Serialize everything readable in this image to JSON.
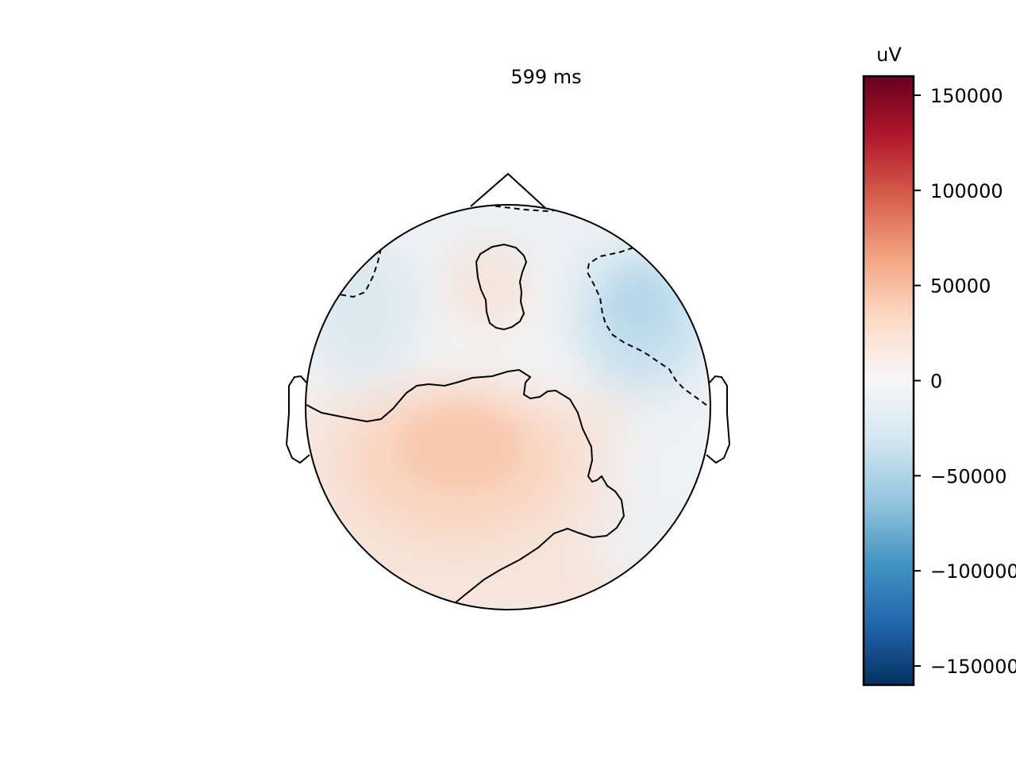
{
  "chart_data": {
    "type": "heatmap",
    "title": "599 ms",
    "colorbar": {
      "label": "uV",
      "min": -160000,
      "max": 160000,
      "colormap": "RdBu_r",
      "colormap_stops": [
        "#053061",
        "#2166ac",
        "#4393c3",
        "#92c5de",
        "#d1e5f0",
        "#f7f7f7",
        "#fddbc7",
        "#f4a582",
        "#d6604d",
        "#b2182b",
        "#67001f"
      ],
      "ticks": [
        150000,
        100000,
        50000,
        0,
        -50000,
        -100000,
        -150000
      ],
      "tick_labels": [
        "150000",
        "100000",
        "50000",
        "0",
        "−50000",
        "−100000",
        "−150000"
      ]
    },
    "regions": [
      {
        "area": "frontal pole",
        "approx_value": 0,
        "color": "#f0f3f5"
      },
      {
        "area": "right frontal",
        "approx_value": -40000,
        "color": "#b9d9ea"
      },
      {
        "area": "left frontal",
        "approx_value": -12000,
        "color": "#dfeaf2"
      },
      {
        "area": "midline frontal island",
        "approx_value": 20000,
        "color": "#f8e2d6"
      },
      {
        "area": "left-central",
        "approx_value": 32000,
        "color": "#f9cdb4"
      },
      {
        "area": "posterior",
        "approx_value": 15000,
        "color": "#f5e2d8"
      },
      {
        "area": "right temporal",
        "approx_value": -8000,
        "color": "#e4ecf1"
      }
    ],
    "contour_levels": [
      -25000,
      0
    ],
    "head_outline": true,
    "grid": false
  }
}
